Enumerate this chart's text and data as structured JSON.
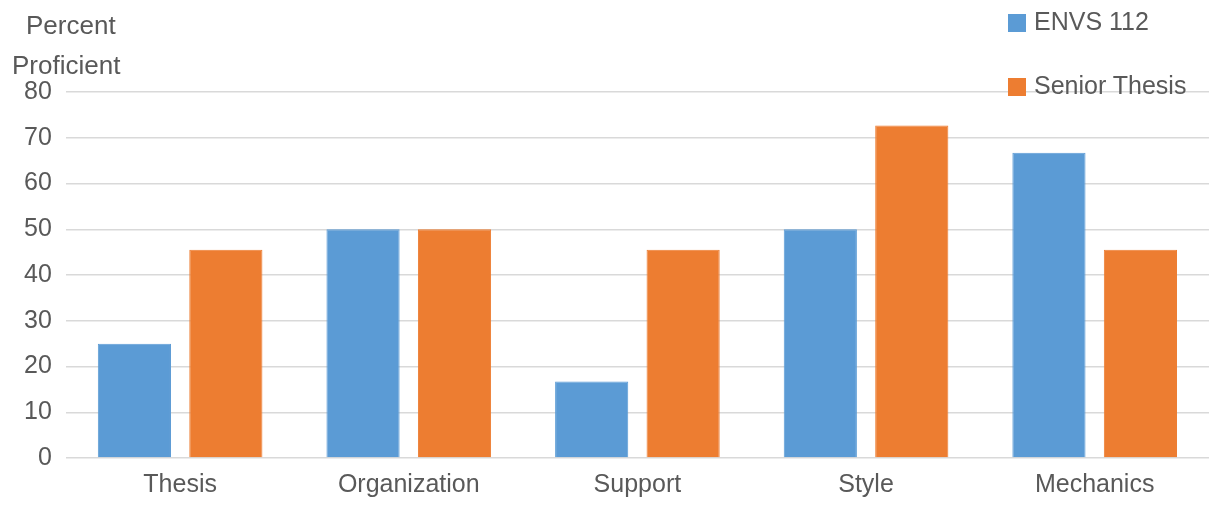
{
  "chart_data": {
    "type": "bar",
    "ylabel": "Percent Proficient",
    "categories": [
      "Thesis",
      "Organization",
      "Support",
      "Style",
      "Mechanics"
    ],
    "series": [
      {
        "name": "ENVS 112",
        "color": "#5b9bd5",
        "values": [
          25,
          50,
          16.7,
          50,
          66.7
        ]
      },
      {
        "name": "Senior Thesis",
        "color": "#ed7d31",
        "values": [
          45.5,
          50,
          45.5,
          72.7,
          45.5
        ]
      }
    ],
    "ylim": [
      0,
      80
    ],
    "yticks": [
      0,
      10,
      20,
      30,
      40,
      50,
      60,
      70,
      80
    ],
    "grid": "y",
    "legend": "top right"
  }
}
